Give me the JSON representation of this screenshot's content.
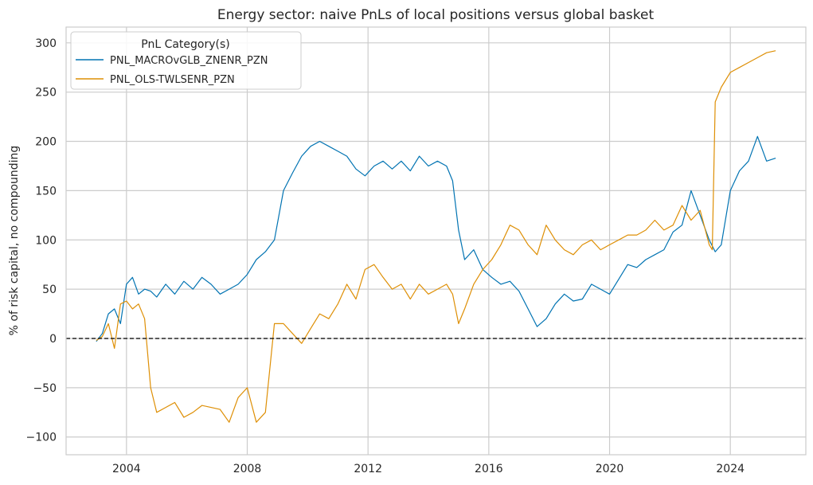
{
  "chart_data": {
    "type": "line",
    "title": "Energy sector: naive PnLs of local positions versus global basket",
    "xlabel": "",
    "ylabel": "% of risk capital, no compounding",
    "xlim": [
      2002.0,
      2026.5
    ],
    "ylim": [
      -118,
      316
    ],
    "x_ticks": [
      "2004",
      "2008",
      "2012",
      "2016",
      "2020",
      "2024"
    ],
    "y_ticks": [
      "−100",
      "−50",
      "0",
      "50",
      "100",
      "150",
      "200",
      "250",
      "300"
    ],
    "x_tick_values": [
      2004,
      2008,
      2012,
      2016,
      2020,
      2024
    ],
    "y_tick_values": [
      -100,
      -50,
      0,
      50,
      100,
      150,
      200,
      250,
      300
    ],
    "grid": true,
    "reference_line": {
      "y": 0,
      "style": "dashed",
      "color": "#000000"
    },
    "legend": {
      "title": "PnL Category(s)",
      "placement": "top-left"
    },
    "series": [
      {
        "name": "PNL_MACROvGLB_ZNENR_PZN",
        "color": "#0173b2",
        "x": [
          2003.0,
          2003.2,
          2003.4,
          2003.6,
          2003.8,
          2004.0,
          2004.2,
          2004.4,
          2004.6,
          2004.8,
          2005.0,
          2005.3,
          2005.6,
          2005.9,
          2006.2,
          2006.5,
          2006.8,
          2007.1,
          2007.4,
          2007.7,
          2008.0,
          2008.3,
          2008.6,
          2008.9,
          2009.2,
          2009.5,
          2009.8,
          2010.1,
          2010.4,
          2010.7,
          2011.0,
          2011.3,
          2011.6,
          2011.9,
          2012.2,
          2012.5,
          2012.8,
          2013.1,
          2013.4,
          2013.7,
          2014.0,
          2014.3,
          2014.6,
          2014.8,
          2015.0,
          2015.2,
          2015.5,
          2015.8,
          2016.1,
          2016.4,
          2016.7,
          2017.0,
          2017.3,
          2017.6,
          2017.9,
          2018.2,
          2018.5,
          2018.8,
          2019.1,
          2019.4,
          2019.7,
          2020.0,
          2020.3,
          2020.6,
          2020.9,
          2021.2,
          2021.5,
          2021.8,
          2022.1,
          2022.4,
          2022.7,
          2023.0,
          2023.3,
          2023.5,
          2023.7,
          2024.0,
          2024.3,
          2024.6,
          2024.9,
          2025.2,
          2025.5
        ],
        "values": [
          -3,
          5,
          25,
          30,
          15,
          55,
          62,
          45,
          50,
          48,
          42,
          55,
          45,
          58,
          50,
          62,
          55,
          45,
          50,
          55,
          65,
          80,
          88,
          100,
          150,
          168,
          185,
          195,
          200,
          195,
          190,
          185,
          172,
          165,
          175,
          180,
          172,
          180,
          170,
          185,
          175,
          180,
          175,
          160,
          110,
          80,
          90,
          70,
          62,
          55,
          58,
          48,
          30,
          12,
          20,
          35,
          45,
          38,
          40,
          55,
          50,
          45,
          60,
          75,
          72,
          80,
          85,
          90,
          108,
          115,
          150,
          125,
          100,
          88,
          95,
          150,
          170,
          180,
          205,
          180,
          183
        ]
      },
      {
        "name": "PNL_OLS-TWLSENR_PZN",
        "color": "#de8f05",
        "x": [
          2003.0,
          2003.2,
          2003.4,
          2003.6,
          2003.8,
          2004.0,
          2004.2,
          2004.4,
          2004.6,
          2004.8,
          2005.0,
          2005.3,
          2005.6,
          2005.9,
          2006.2,
          2006.5,
          2006.8,
          2007.1,
          2007.4,
          2007.7,
          2008.0,
          2008.3,
          2008.6,
          2008.9,
          2009.2,
          2009.5,
          2009.8,
          2010.1,
          2010.4,
          2010.7,
          2011.0,
          2011.3,
          2011.6,
          2011.9,
          2012.2,
          2012.5,
          2012.8,
          2013.1,
          2013.4,
          2013.7,
          2014.0,
          2014.3,
          2014.6,
          2014.8,
          2015.0,
          2015.2,
          2015.5,
          2015.8,
          2016.1,
          2016.4,
          2016.7,
          2017.0,
          2017.3,
          2017.6,
          2017.9,
          2018.2,
          2018.5,
          2018.8,
          2019.1,
          2019.4,
          2019.7,
          2020.0,
          2020.3,
          2020.6,
          2020.9,
          2021.2,
          2021.5,
          2021.8,
          2022.1,
          2022.4,
          2022.7,
          2023.0,
          2023.3,
          2023.4,
          2023.5,
          2023.7,
          2024.0,
          2024.3,
          2024.6,
          2024.9,
          2025.2,
          2025.5
        ],
        "values": [
          -2,
          2,
          15,
          -10,
          35,
          38,
          30,
          35,
          20,
          -50,
          -75,
          -70,
          -65,
          -80,
          -75,
          -68,
          -70,
          -72,
          -85,
          -60,
          -50,
          -85,
          -75,
          15,
          15,
          5,
          -5,
          10,
          25,
          20,
          35,
          55,
          40,
          70,
          75,
          62,
          50,
          55,
          40,
          55,
          45,
          50,
          55,
          45,
          15,
          30,
          55,
          70,
          80,
          95,
          115,
          110,
          95,
          85,
          115,
          100,
          90,
          85,
          95,
          100,
          90,
          95,
          100,
          105,
          105,
          110,
          120,
          110,
          115,
          135,
          120,
          130,
          95,
          90,
          240,
          255,
          270,
          275,
          280,
          285,
          290,
          292
        ]
      }
    ]
  }
}
